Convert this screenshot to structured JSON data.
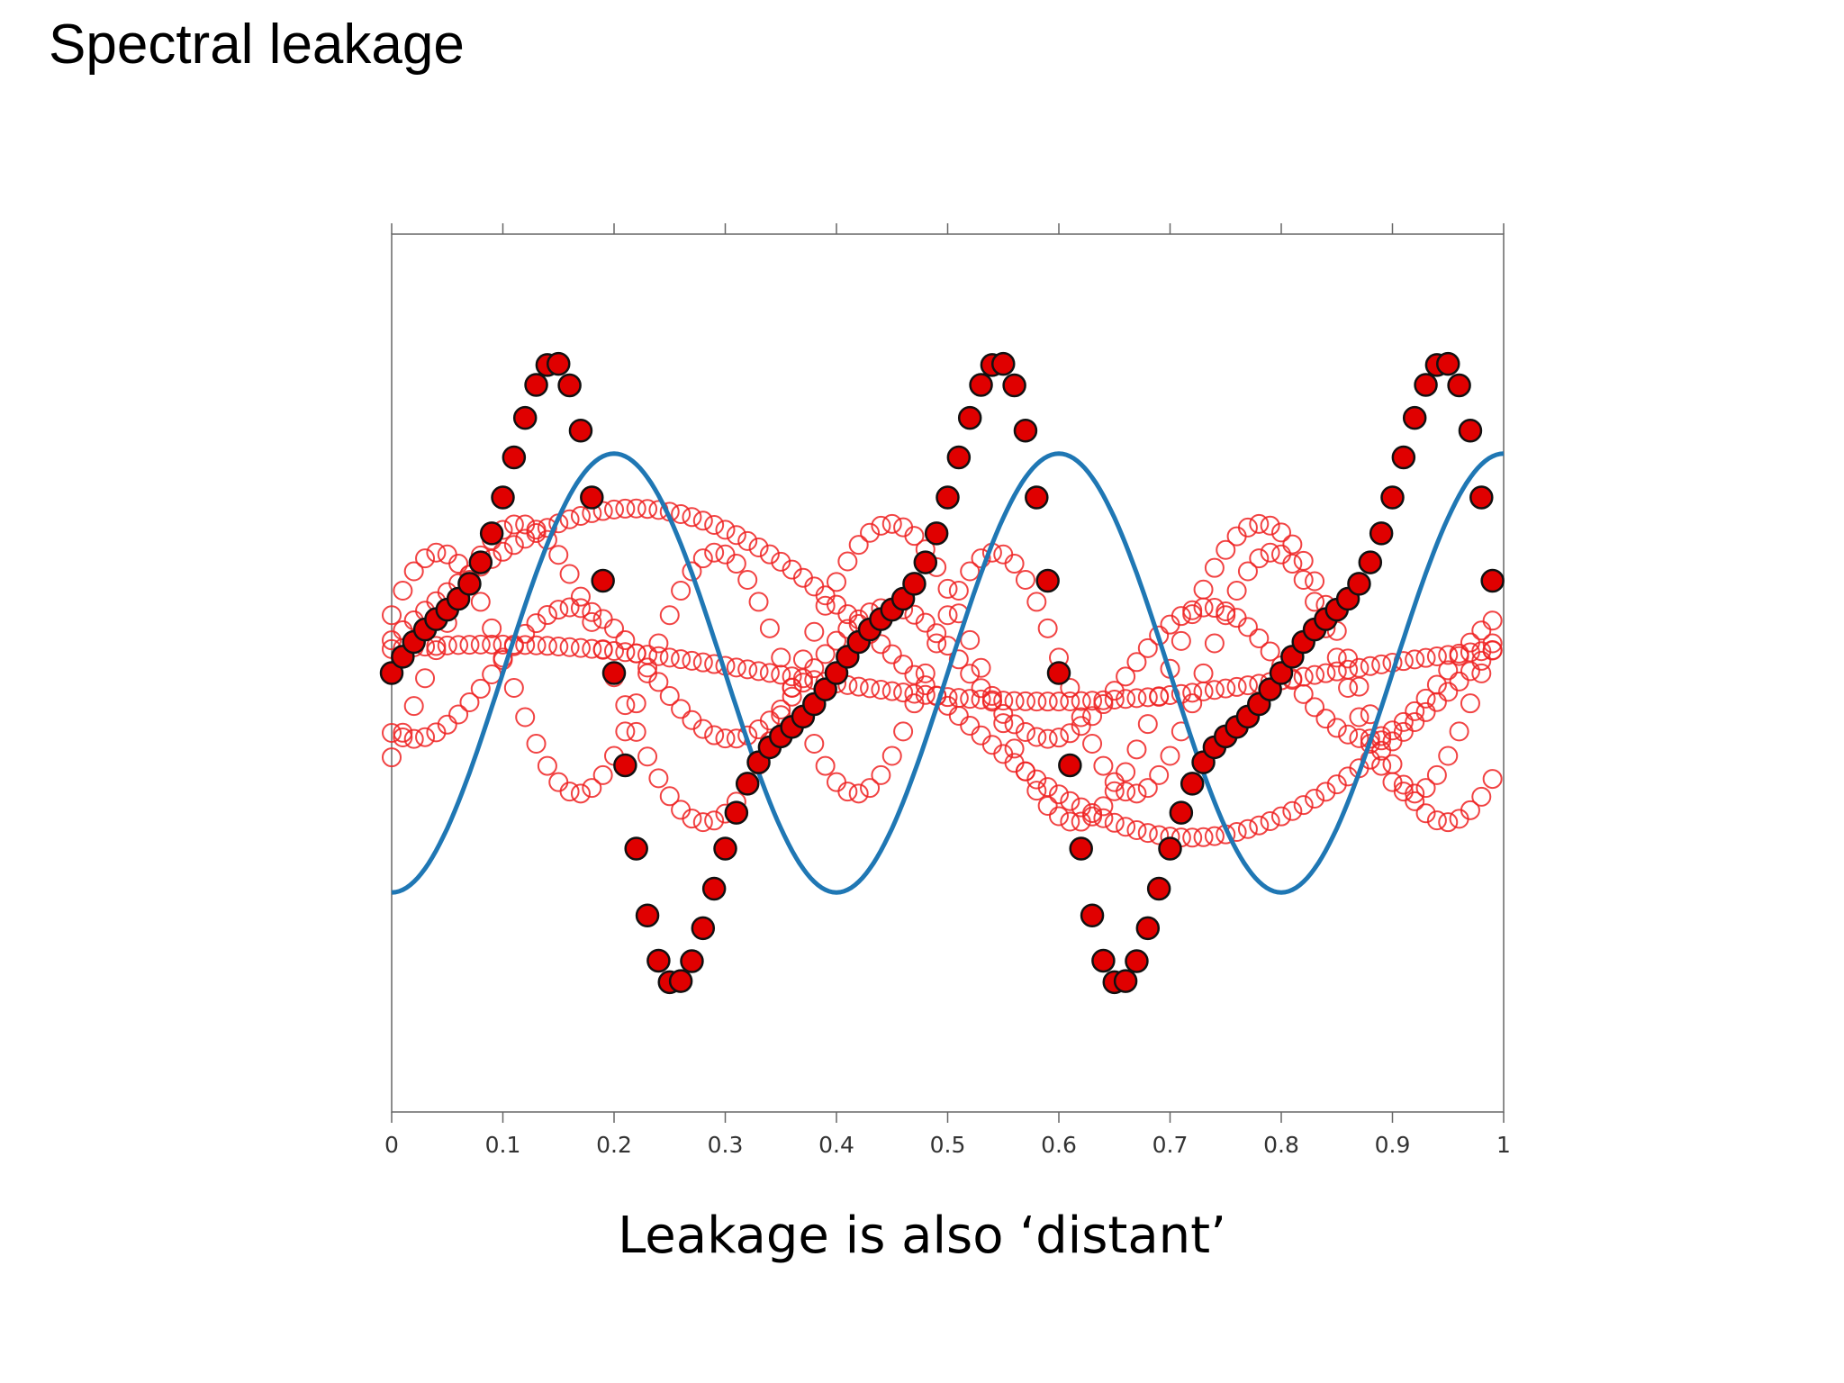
{
  "slide": {
    "title": "Spectral leakage",
    "caption": "Leakage is also ‘distant’"
  },
  "colors": {
    "curve": "#1f77b4",
    "marker_fill": "#e00000",
    "marker_edge": "#111111",
    "open_marker": "#ee2222"
  },
  "chart_data": {
    "type": "scatter",
    "title": "",
    "xlabel": "",
    "ylabel": "",
    "xlim": [
      0,
      1
    ],
    "ylim": [
      -2.0,
      2.0
    ],
    "grid": false,
    "legend": "none",
    "y_tick_labels_shown": false,
    "x_ticks": [
      0,
      0.1,
      0.2,
      0.3,
      0.4,
      0.5,
      0.6,
      0.7,
      0.8,
      0.9,
      1
    ],
    "x_tick_labels": [
      "0",
      "0.1",
      "0.2",
      "0.3",
      "0.4",
      "0.5",
      "0.6",
      "0.7",
      "0.8",
      "0.9",
      "1"
    ],
    "series": [
      {
        "kind": "line",
        "function": "sin(2*pi*2.5*x - pi/2)",
        "x_range": [
          0,
          1
        ],
        "y_range": [
          -1.0,
          1.0
        ],
        "samples": 300
      },
      {
        "kind": "filled_markers",
        "function": "sin(2*pi*2.5*x) - 0.56*sin(2*pi*5.0*x) + 0.2*sin(2*pi*7.5*x)",
        "x_step": 0.01,
        "x_range": [
          0,
          0.99
        ],
        "y_range": [
          -1.13,
          1.11
        ]
      },
      {
        "kind": "open_markers",
        "function": "0.75*sin(2*pi*x + 0.2)",
        "x_step": 0.01,
        "x_range": [
          0,
          0.99
        ],
        "y_range": [
          -0.76,
          0.76
        ]
      },
      {
        "kind": "open_markers",
        "function": "0.55*sin(2*pi*4*x + 0.5)",
        "x_step": 0.01,
        "x_range": [
          0,
          0.99
        ],
        "y_range": [
          -0.56,
          0.56
        ]
      },
      {
        "kind": "open_markers",
        "function": "0.68*sin(2*pi*3*x - 0.6)",
        "x_step": 0.01,
        "x_range": [
          0,
          0.99
        ],
        "y_range": [
          -0.68,
          0.68
        ]
      },
      {
        "kind": "open_markers",
        "function": "0.30*sin(2*pi*3.5*x - 2.0)",
        "x_step": 0.01,
        "x_range": [
          0,
          0.99
        ],
        "y_range": [
          -0.31,
          0.31
        ]
      },
      {
        "kind": "open_markers",
        "function": "0.13*sin(2*pi*1*x + 1.0)",
        "x_step": 0.01,
        "x_range": [
          0,
          0.99
        ],
        "y_range": [
          -0.13,
          0.13
        ]
      }
    ]
  }
}
